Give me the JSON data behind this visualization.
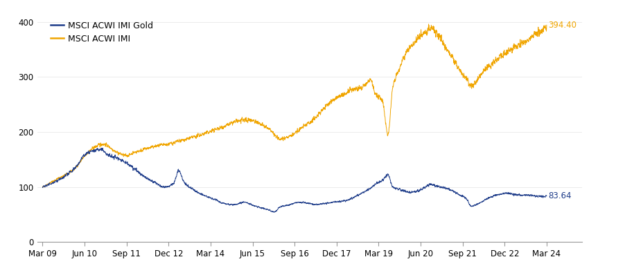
{
  "title": "",
  "legend_blue": "MSCI ACWI IMI Gold",
  "legend_gold": "MSCI ACWI IMI",
  "blue_label": "83.64",
  "gold_label": "394.40",
  "blue_color": "#1f3d8a",
  "gold_color": "#f0a500",
  "background_color": "#ffffff",
  "ylim": [
    0,
    420
  ],
  "yticks": [
    0,
    100,
    200,
    300,
    400
  ],
  "xlabel_dates": [
    "Mar 09",
    "Jun 10",
    "Sep 11",
    "Dec 12",
    "Mar 14",
    "Jun 15",
    "Sep 16",
    "Dec 17",
    "Mar 19",
    "Jun 20",
    "Sep 21",
    "Dec 22",
    "Mar 24"
  ],
  "tick_months": [
    0,
    15,
    30,
    45,
    60,
    75,
    90,
    105,
    120,
    135,
    150,
    165,
    180
  ],
  "total_months": 180
}
